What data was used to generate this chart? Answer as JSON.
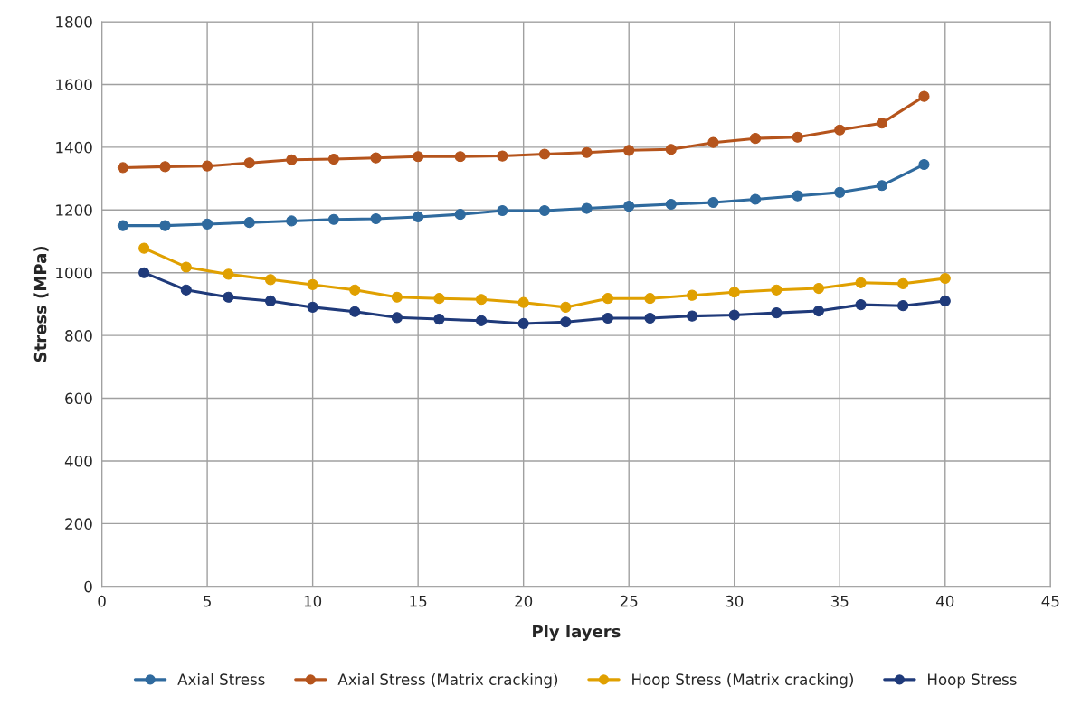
{
  "chart_data": {
    "type": "line",
    "xlabel": "Ply layers",
    "ylabel": "Stress (MPa)",
    "xlim": [
      0,
      45
    ],
    "xticks": [
      0,
      5,
      10,
      15,
      20,
      25,
      30,
      35,
      40,
      45
    ],
    "ylim": [
      0,
      1800
    ],
    "yticks": [
      0,
      200,
      400,
      600,
      800,
      1000,
      1200,
      1400,
      1600,
      1800
    ],
    "grid": true,
    "legend": "bottom",
    "marker": "circle",
    "line_style": "solid",
    "series": [
      {
        "name": "Axial Stress",
        "color": "#2f6a9e",
        "x": [
          1,
          3,
          5,
          7,
          9,
          11,
          13,
          15,
          17,
          19,
          21,
          23,
          25,
          27,
          29,
          31,
          33,
          35,
          37,
          39
        ],
        "values": [
          1150,
          1150,
          1155,
          1160,
          1165,
          1170,
          1172,
          1178,
          1186,
          1198,
          1198,
          1205,
          1212,
          1218,
          1224,
          1234,
          1245,
          1256,
          1278,
          1345
        ]
      },
      {
        "name": "Axial Stress (Matrix cracking)",
        "color": "#b5541c",
        "x": [
          1,
          3,
          5,
          7,
          9,
          11,
          13,
          15,
          17,
          19,
          21,
          23,
          25,
          27,
          29,
          31,
          33,
          35,
          37,
          39
        ],
        "values": [
          1335,
          1338,
          1340,
          1350,
          1360,
          1362,
          1366,
          1370,
          1370,
          1372,
          1378,
          1383,
          1390,
          1393,
          1415,
          1428,
          1432,
          1455,
          1477,
          1562
        ]
      },
      {
        "name": "Hoop Stress (Matrix cracking)",
        "color": "#e0a000",
        "x": [
          2,
          4,
          6,
          8,
          10,
          12,
          14,
          16,
          18,
          20,
          22,
          24,
          26,
          28,
          30,
          32,
          34,
          36,
          38,
          40
        ],
        "values": [
          1078,
          1018,
          995,
          978,
          962,
          945,
          922,
          918,
          915,
          905,
          890,
          918,
          918,
          928,
          938,
          945,
          950,
          968,
          965,
          982
        ]
      },
      {
        "name": "Hoop Stress",
        "color": "#1f3a7a",
        "x": [
          2,
          4,
          6,
          8,
          10,
          12,
          14,
          16,
          18,
          20,
          22,
          24,
          26,
          28,
          30,
          32,
          34,
          36,
          38,
          40
        ],
        "values": [
          1000,
          945,
          922,
          910,
          890,
          876,
          857,
          852,
          847,
          838,
          843,
          855,
          855,
          862,
          865,
          872,
          878,
          898,
          895,
          910
        ]
      }
    ]
  }
}
